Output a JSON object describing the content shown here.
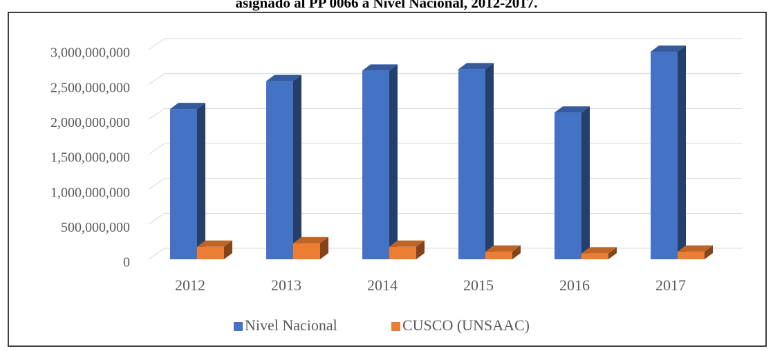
{
  "chart_data": {
    "type": "bar3d",
    "title": "asignado al PP 0066 a Nivel Nacional, 2012-2017.",
    "categories": [
      "2012",
      "2013",
      "2014",
      "2015",
      "2016",
      "2017"
    ],
    "series": [
      {
        "name": "Nivel Nacional",
        "color": "#4472c4",
        "values": [
          2150000000,
          2550000000,
          2700000000,
          2720000000,
          2100000000,
          2970000000
        ]
      },
      {
        "name": "CUSCO (UNSAAC)",
        "color": "#ed7d31",
        "values": [
          180000000,
          230000000,
          180000000,
          110000000,
          85000000,
          110000000
        ]
      }
    ],
    "ylim": [
      0,
      3000000000
    ],
    "yticks": [
      {
        "value": 0,
        "label": "0"
      },
      {
        "value": 500000000,
        "label": "500,000,000"
      },
      {
        "value": 1000000000,
        "label": "1,000,000,000"
      },
      {
        "value": 1500000000,
        "label": "1,500,000,000"
      },
      {
        "value": 2000000000,
        "label": "2,000,000,000"
      },
      {
        "value": 2500000000,
        "label": "2,500,000,000"
      },
      {
        "value": 3000000000,
        "label": "3,000,000,000"
      }
    ],
    "grid": true,
    "legend": "bottom"
  }
}
